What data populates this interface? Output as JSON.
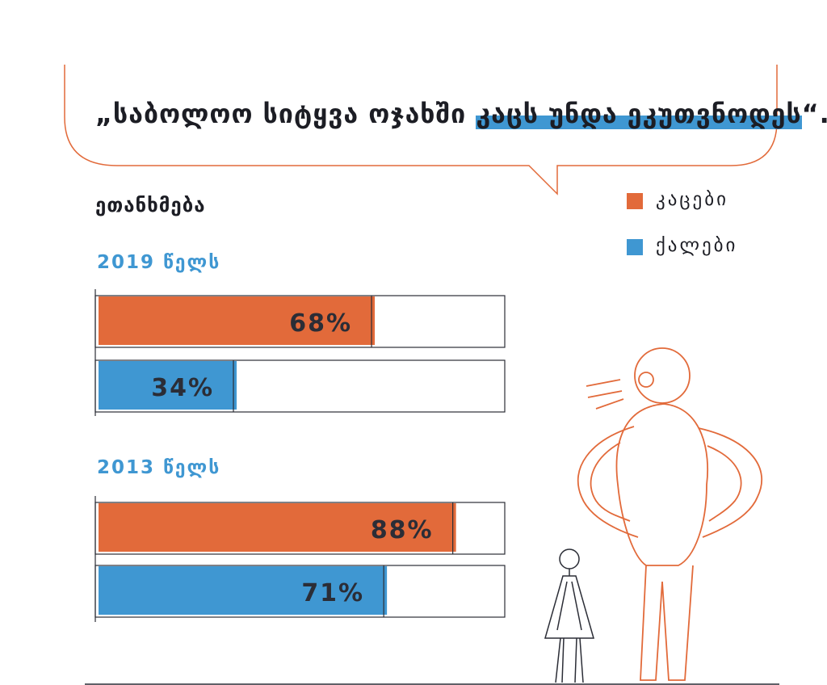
{
  "quote": {
    "text_plain": "„საბოლოო სიტყვა ოჯახში ",
    "text_highlight": "კაცს უნდა ეკუთვნოდეს",
    "text_end": "“."
  },
  "subtitle": "ეთანხმება",
  "legend": [
    {
      "label": "კაცები",
      "color": "#e26a3a"
    },
    {
      "label": "ქალები",
      "color": "#3f97d2"
    }
  ],
  "chart_data": {
    "type": "bar",
    "orientation": "horizontal",
    "xlim": [
      0,
      100
    ],
    "groups": [
      {
        "title": "2019 წელს",
        "bars": [
          {
            "series": "კაცები",
            "value": 68,
            "label": "68%"
          },
          {
            "series": "ქალები",
            "value": 34,
            "label": "34%"
          }
        ]
      },
      {
        "title": "2013 წელს",
        "bars": [
          {
            "series": "კაცები",
            "value": 88,
            "label": "88%"
          },
          {
            "series": "ქალები",
            "value": 71,
            "label": "71%"
          }
        ]
      }
    ]
  }
}
